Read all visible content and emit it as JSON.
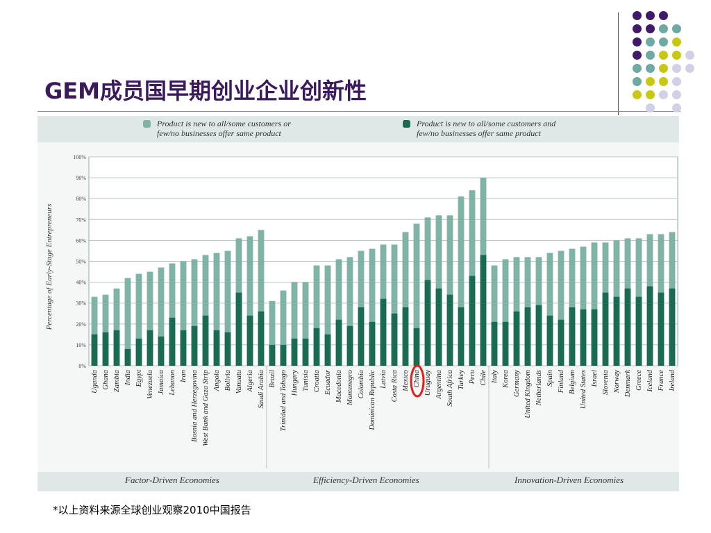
{
  "slide": {
    "title": "GEM成员国早期创业企业创新性",
    "source_note": "*以上资料来源全球创业观察2010中国报告"
  },
  "colors": {
    "title": "#3b1a5c",
    "light_bar": "#7fb3a6",
    "dark_bar": "#1a6b52",
    "highlight_circle": "#e0201a",
    "dot_purple": "#3f1a68",
    "dot_teal": "#6fa9a4",
    "dot_yellow": "#c8c814",
    "dot_lavender": "#d2d0e6"
  },
  "legend": {
    "light_label_line1": "Product is new to all/some customers or",
    "light_label_line2": "few/no businesses offer same product",
    "dark_label_line1": "Product is new to all/some customers and",
    "dark_label_line2": "few/no businesses offer same product"
  },
  "chart_data": {
    "type": "bar",
    "ylabel": "Percentage of Early-Stage Entrepreneurs",
    "ylim": [
      0,
      100
    ],
    "yticks": [
      "0%",
      "10%",
      "20%",
      "30%",
      "40%",
      "50%",
      "60%",
      "70%",
      "80%",
      "90%",
      "100%"
    ],
    "grid": true,
    "legend_position": "top",
    "highlight": "China",
    "categories": [
      "Uganda",
      "Ghana",
      "Zambia",
      "India",
      "Egypt",
      "Venezuela",
      "Jamaica",
      "Lebanon",
      "Iran",
      "Bosnia and Herzegovina",
      "West Bank and Gaza Strip",
      "Angola",
      "Bolivia",
      "Vanuatu",
      "Algeria",
      "Saudi Arabia",
      "Brazil",
      "Trinidad and Tobago",
      "Hungary",
      "Tunisia",
      "Croatia",
      "Ecuador",
      "Macedonia",
      "Montenegro",
      "Colombia",
      "Dominican Republic",
      "Latvia",
      "Costa Rica",
      "Mexico",
      "China",
      "Uruguay",
      "Argentina",
      "South Africa",
      "Turkey",
      "Peru",
      "Chile",
      "Italy",
      "Korea",
      "Germany",
      "United Kingdom",
      "Netherlands",
      "Spain",
      "Finland",
      "Belgium",
      "United States",
      "Israel",
      "Slovenia",
      "Norway",
      "Denmark",
      "Greece",
      "Iceland",
      "France",
      "Ireland"
    ],
    "series": [
      {
        "name": "Product is new to all/some customers or few/no businesses offer same product",
        "values": [
          33,
          34,
          37,
          42,
          44,
          45,
          47,
          49,
          50,
          51,
          53,
          54,
          55,
          61,
          62,
          65,
          31,
          36,
          40,
          40,
          48,
          48,
          51,
          52,
          55,
          56,
          58,
          58,
          64,
          68,
          71,
          72,
          72,
          81,
          84,
          90,
          48,
          51,
          52,
          52,
          52,
          54,
          55,
          56,
          57,
          59,
          59,
          60,
          61,
          61,
          63,
          63,
          64
        ]
      },
      {
        "name": "Product is new to all/some customers and few/no businesses offer same product",
        "values": [
          15,
          16,
          17,
          8,
          13,
          17,
          14,
          23,
          17,
          19,
          24,
          17,
          16,
          35,
          24,
          26,
          10,
          10,
          13,
          13,
          18,
          15,
          22,
          19,
          28,
          21,
          32,
          25,
          28,
          18,
          41,
          37,
          34,
          28,
          43,
          53,
          21,
          21,
          26,
          28,
          29,
          24,
          22,
          28,
          27,
          27,
          35,
          33,
          37,
          33,
          38,
          35,
          37
        ]
      }
    ],
    "groups": [
      {
        "label": "Factor-Driven Economies",
        "start": 0,
        "end": 15
      },
      {
        "label": "Efficiency-Driven Economies",
        "start": 16,
        "end": 35
      },
      {
        "label": "Innovation-Driven Economies",
        "start": 36,
        "end": 52
      }
    ]
  }
}
